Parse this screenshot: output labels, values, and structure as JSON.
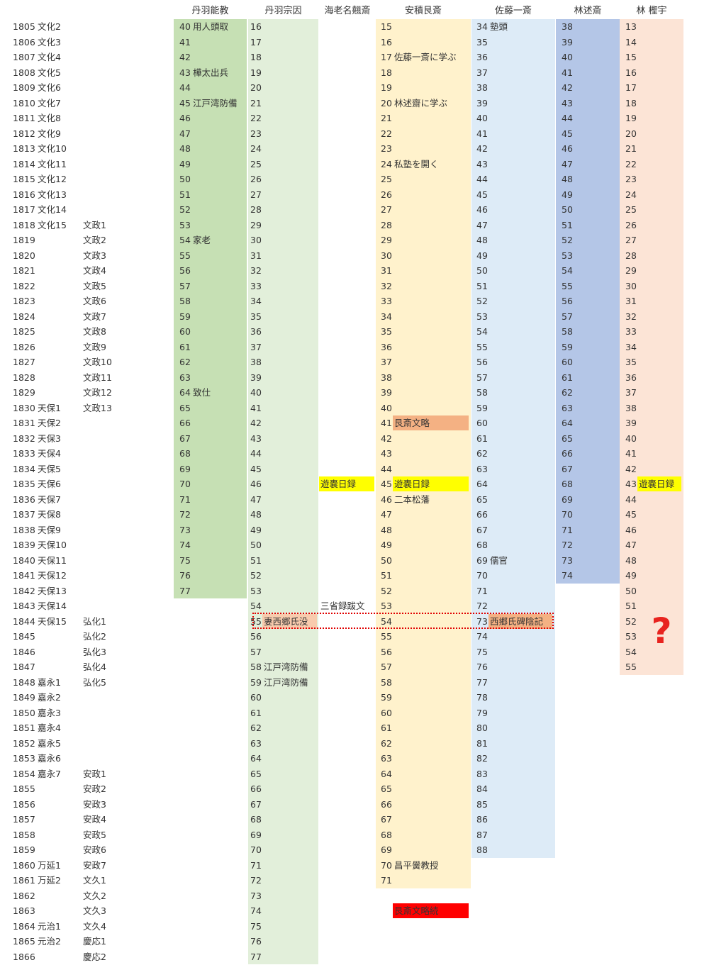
{
  "columns": [
    "丹羽能教",
    "丹羽宗因",
    "海老名翹斎",
    "安積艮斎",
    "佐藤一斎",
    "林述斎",
    "林 檉宇"
  ],
  "colors": {
    "niwa_yoshinori": "#c6e0b4",
    "niwa_soin": "#e2efda",
    "asaka": "#fff2cc",
    "sato": "#ddebf7",
    "hayashi_jussai": "#b4c6e7",
    "hayashi_teiu": "#fce4d6",
    "yellow": "#ffff00",
    "salmon": "#f4b183",
    "red": "#ff0000",
    "peach": "#f8cbad",
    "question": "#e8231f"
  },
  "years": [
    {
      "y": "1805",
      "era1": "文化2",
      "era2": ""
    },
    {
      "y": "1806",
      "era1": "文化3",
      "era2": ""
    },
    {
      "y": "1807",
      "era1": "文化4",
      "era2": ""
    },
    {
      "y": "1808",
      "era1": "文化5",
      "era2": ""
    },
    {
      "y": "1809",
      "era1": "文化6",
      "era2": ""
    },
    {
      "y": "1810",
      "era1": "文化7",
      "era2": ""
    },
    {
      "y": "1811",
      "era1": "文化8",
      "era2": ""
    },
    {
      "y": "1812",
      "era1": "文化9",
      "era2": ""
    },
    {
      "y": "1813",
      "era1": "文化10",
      "era2": ""
    },
    {
      "y": "1814",
      "era1": "文化11",
      "era2": ""
    },
    {
      "y": "1815",
      "era1": "文化12",
      "era2": ""
    },
    {
      "y": "1816",
      "era1": "文化13",
      "era2": ""
    },
    {
      "y": "1817",
      "era1": "文化14",
      "era2": ""
    },
    {
      "y": "1818",
      "era1": "文化15",
      "era2": "文政1"
    },
    {
      "y": "1819",
      "era1": "",
      "era2": "文政2"
    },
    {
      "y": "1820",
      "era1": "",
      "era2": "文政3"
    },
    {
      "y": "1821",
      "era1": "",
      "era2": "文政4"
    },
    {
      "y": "1822",
      "era1": "",
      "era2": "文政5"
    },
    {
      "y": "1823",
      "era1": "",
      "era2": "文政6"
    },
    {
      "y": "1824",
      "era1": "",
      "era2": "文政7"
    },
    {
      "y": "1825",
      "era1": "",
      "era2": "文政8"
    },
    {
      "y": "1826",
      "era1": "",
      "era2": "文政9"
    },
    {
      "y": "1827",
      "era1": "",
      "era2": "文政10"
    },
    {
      "y": "1828",
      "era1": "",
      "era2": "文政11"
    },
    {
      "y": "1829",
      "era1": "",
      "era2": "文政12"
    },
    {
      "y": "1830",
      "era1": "天保1",
      "era2": "文政13"
    },
    {
      "y": "1831",
      "era1": "天保2",
      "era2": ""
    },
    {
      "y": "1832",
      "era1": "天保3",
      "era2": ""
    },
    {
      "y": "1833",
      "era1": "天保4",
      "era2": ""
    },
    {
      "y": "1834",
      "era1": "天保5",
      "era2": ""
    },
    {
      "y": "1835",
      "era1": "天保6",
      "era2": ""
    },
    {
      "y": "1836",
      "era1": "天保7",
      "era2": ""
    },
    {
      "y": "1837",
      "era1": "天保8",
      "era2": ""
    },
    {
      "y": "1838",
      "era1": "天保9",
      "era2": ""
    },
    {
      "y": "1839",
      "era1": "天保10",
      "era2": ""
    },
    {
      "y": "1840",
      "era1": "天保11",
      "era2": ""
    },
    {
      "y": "1841",
      "era1": "天保12",
      "era2": ""
    },
    {
      "y": "1842",
      "era1": "天保13",
      "era2": ""
    },
    {
      "y": "1843",
      "era1": "天保14",
      "era2": ""
    },
    {
      "y": "1844",
      "era1": "天保15",
      "era2": "弘化1"
    },
    {
      "y": "1845",
      "era1": "",
      "era2": "弘化2"
    },
    {
      "y": "1846",
      "era1": "",
      "era2": "弘化3"
    },
    {
      "y": "1847",
      "era1": "",
      "era2": "弘化4"
    },
    {
      "y": "1848",
      "era1": "嘉永1",
      "era2": "弘化5"
    },
    {
      "y": "1849",
      "era1": "嘉永2",
      "era2": ""
    },
    {
      "y": "1850",
      "era1": "嘉永3",
      "era2": ""
    },
    {
      "y": "1851",
      "era1": "嘉永4",
      "era2": ""
    },
    {
      "y": "1852",
      "era1": "嘉永5",
      "era2": ""
    },
    {
      "y": "1853",
      "era1": "嘉永6",
      "era2": ""
    },
    {
      "y": "1854",
      "era1": "嘉永7",
      "era2": "安政1"
    },
    {
      "y": "1855",
      "era1": "",
      "era2": "安政2"
    },
    {
      "y": "1856",
      "era1": "",
      "era2": "安政3"
    },
    {
      "y": "1857",
      "era1": "",
      "era2": "安政4"
    },
    {
      "y": "1858",
      "era1": "",
      "era2": "安政5"
    },
    {
      "y": "1859",
      "era1": "",
      "era2": "安政6"
    },
    {
      "y": "1860",
      "era1": "万延1",
      "era2": "安政7"
    },
    {
      "y": "1861",
      "era1": "万延2",
      "era2": "文久1"
    },
    {
      "y": "1862",
      "era1": "",
      "era2": "文久2"
    },
    {
      "y": "1863",
      "era1": "",
      "era2": "文久3"
    },
    {
      "y": "1864",
      "era1": "元治1",
      "era2": "文久4"
    },
    {
      "y": "1865",
      "era1": "元治2",
      "era2": "慶応1"
    },
    {
      "y": "1866",
      "era1": "",
      "era2": "慶応2"
    }
  ],
  "people": [
    {
      "key": "niwa_yoshinori",
      "first_age": 40,
      "rows": 38,
      "band": "niwa_yoshinori",
      "events": {
        "0": {
          "t": "用人頭取"
        },
        "3": {
          "t": "樺太出兵"
        },
        "5": {
          "t": "江戸湾防備"
        },
        "14": {
          "t": "家老"
        },
        "24": {
          "t": "致仕"
        }
      }
    },
    {
      "key": "niwa_soin",
      "first_age": 16,
      "rows": 62,
      "band": "niwa_soin",
      "events": {
        "39": {
          "t": "妻西郷氏没",
          "hl": "peach"
        },
        "42": {
          "t": "江戸湾防備"
        },
        "43": {
          "t": "江戸湾防備"
        }
      }
    },
    {
      "key": "ebina",
      "first_age": null,
      "rows": 0,
      "band": null,
      "events": {
        "30": {
          "t": "遊嚢日録",
          "hl": "yellow"
        },
        "38": {
          "t": "三省録跋文"
        }
      }
    },
    {
      "key": "asaka",
      "first_age": 15,
      "rows": 57,
      "band": "asaka",
      "events": {
        "2": {
          "t": "佐藤一斎に学ぶ"
        },
        "5": {
          "t": "林述齋に学ぶ"
        },
        "9": {
          "t": "私塾を開く"
        },
        "26": {
          "t": "艮斎文略",
          "hl": "salmon"
        },
        "30": {
          "t": "遊嚢日録",
          "hl": "yellow"
        },
        "31": {
          "t": "二本松藩"
        },
        "55": {
          "t": "昌平黌教授"
        },
        "58": {
          "t": "艮斎文略続",
          "hl": "red"
        }
      }
    },
    {
      "key": "sato",
      "first_age": 34,
      "rows": 55,
      "band": "sato",
      "events": {
        "0": {
          "t": "塾頭"
        },
        "35": {
          "t": "儒官"
        },
        "39": {
          "t": "西郷氏碑陰記",
          "hl": "salmon"
        }
      }
    },
    {
      "key": "hayashi_jussai",
      "first_age": 38,
      "rows": 37,
      "band": "hayashi_jussai",
      "events": {}
    },
    {
      "key": "hayashi_teiu",
      "first_age": 13,
      "rows": 43,
      "band": "hayashi_teiu",
      "events": {
        "30": {
          "t": "遊嚢日録",
          "hl": "yellow"
        }
      }
    }
  ],
  "question_mark": "?"
}
